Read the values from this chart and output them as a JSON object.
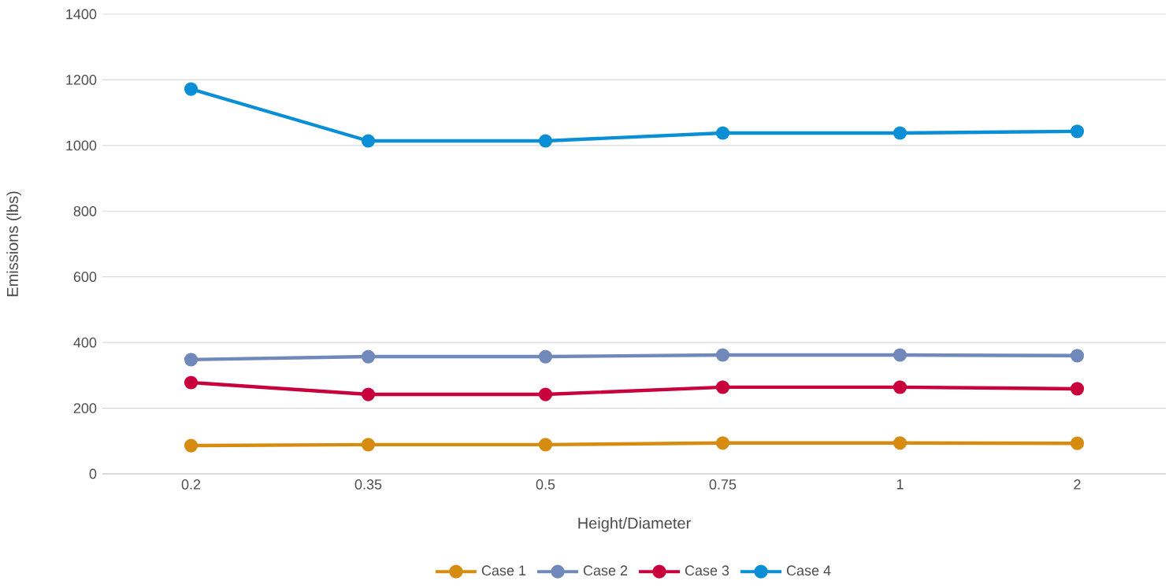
{
  "chart_data": {
    "type": "line",
    "xlabel": "Height/Diameter",
    "ylabel": "Emissions (lbs)",
    "categories": [
      "0.2",
      "0.35",
      "0.5",
      "0.75",
      "1",
      "2"
    ],
    "series": [
      {
        "name": "Case 1",
        "color": "#d68c10",
        "values": [
          86,
          89,
          89,
          94,
          94,
          93
        ]
      },
      {
        "name": "Case 2",
        "color": "#7088ba",
        "values": [
          348,
          357,
          357,
          362,
          362,
          360
        ]
      },
      {
        "name": "Case 3",
        "color": "#c8003c",
        "values": [
          278,
          242,
          242,
          264,
          264,
          259
        ]
      },
      {
        "name": "Case 4",
        "color": "#0a8fd6",
        "values": [
          1172,
          1014,
          1014,
          1038,
          1038,
          1043
        ]
      }
    ],
    "ylim": [
      0,
      1400
    ],
    "yticks": [
      0,
      200,
      400,
      600,
      800,
      1000,
      1200,
      1400
    ],
    "grid": "y",
    "legend": "bottom",
    "marker": "circle",
    "line_style": "solid"
  }
}
